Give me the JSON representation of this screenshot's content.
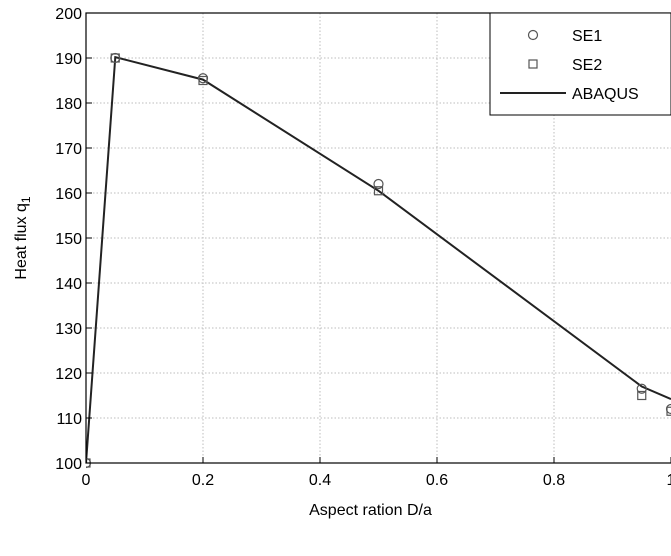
{
  "chart_data": {
    "type": "line",
    "xlabel": "Aspect ration D/a",
    "ylabel_main": "Heat flux q",
    "ylabel_sub": "1",
    "xlim": [
      0,
      1
    ],
    "ylim": [
      100,
      200
    ],
    "xticks": [
      0,
      0.2,
      0.4,
      0.6,
      0.8,
      1
    ],
    "xtick_labels": [
      "0",
      "0.2",
      "0.4",
      "0.6",
      "0.8",
      "1"
    ],
    "yticks": [
      100,
      110,
      120,
      130,
      140,
      150,
      160,
      170,
      180,
      190,
      200
    ],
    "ytick_labels": [
      "100",
      "110",
      "120",
      "130",
      "140",
      "150",
      "160",
      "170",
      "180",
      "190",
      "200"
    ],
    "grid": true,
    "legend_position": "top-right",
    "series": [
      {
        "name": "SE1",
        "marker": "circle",
        "x": [
          0,
          0.05,
          0.2,
          0.5,
          0.95,
          1.0
        ],
        "y": [
          100,
          190,
          185.5,
          162,
          116.5,
          112
        ]
      },
      {
        "name": "SE2",
        "marker": "square",
        "x": [
          0,
          0.05,
          0.2,
          0.5,
          0.95,
          1.0
        ],
        "y": [
          100,
          190,
          185,
          160.5,
          115,
          111.5
        ]
      },
      {
        "name": "ABAQUS",
        "marker": "line",
        "x": [
          0,
          0.05,
          0.2,
          0.5,
          0.95,
          1.0
        ],
        "y": [
          100,
          190.2,
          185.2,
          160.5,
          117,
          114.2
        ]
      }
    ],
    "colors": {
      "line": "#222222",
      "marker": "#555555",
      "grid": "#bdbdbd"
    }
  }
}
